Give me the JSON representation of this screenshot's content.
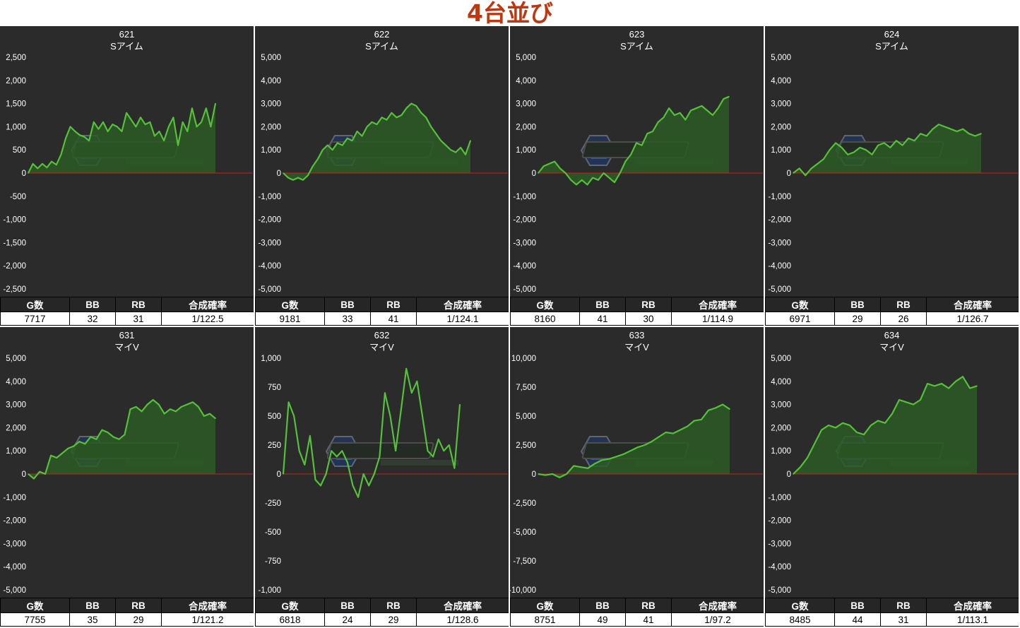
{
  "page_title": "4台並び",
  "stat_headers": [
    "G数",
    "BB",
    "RB",
    "合成確率"
  ],
  "colors": {
    "background": "#2b2b2b",
    "line": "#55c039",
    "area": "#2c5a24",
    "zero_line": "#cc1f1f",
    "title": "#c0370f"
  },
  "chart_data": [
    {
      "type": "area",
      "title": "621",
      "subtitle": "Sアイム",
      "ylim": [
        -2500,
        2500
      ],
      "yticks": [
        2500,
        2000,
        1500,
        1000,
        500,
        0,
        -500,
        -1000,
        -1500,
        -2000,
        -2500
      ],
      "yticklabels": [
        "2,500",
        "2,000",
        "1,500",
        "1,000",
        "500",
        "0",
        "-500",
        "-1,000",
        "-1,500",
        "-2,000",
        "-2,500"
      ],
      "values": [
        0,
        200,
        100,
        200,
        120,
        250,
        180,
        400,
        750,
        1000,
        900,
        820,
        780,
        700,
        1100,
        950,
        1100,
        900,
        1050,
        1000,
        900,
        1300,
        1150,
        1000,
        1200,
        1050,
        1100,
        800,
        900,
        700,
        1000,
        1200,
        600,
        1100,
        900,
        1400,
        1000,
        1100,
        1400,
        1000,
        1500
      ],
      "stats": {
        "games": "7717",
        "bb": "32",
        "rb": "31",
        "prob": "1/122.5"
      }
    },
    {
      "type": "area",
      "title": "622",
      "subtitle": "Sアイム",
      "ylim": [
        -5000,
        5000
      ],
      "yticks": [
        5000,
        4000,
        3000,
        2000,
        1000,
        0,
        -1000,
        -2000,
        -3000,
        -4000,
        -5000
      ],
      "yticklabels": [
        "5,000",
        "4,000",
        "3,000",
        "2,000",
        "1,000",
        "0",
        "-1,000",
        "-2,000",
        "-3,000",
        "-4,000",
        "-5,000"
      ],
      "values": [
        0,
        -200,
        -300,
        -200,
        -300,
        -100,
        300,
        600,
        1000,
        1200,
        1000,
        1300,
        1200,
        1500,
        1400,
        1800,
        1600,
        2000,
        2200,
        2100,
        2400,
        2300,
        2600,
        2400,
        2500,
        2800,
        3000,
        2900,
        2600,
        2400,
        2000,
        1700,
        1400,
        1200,
        1000,
        900,
        1100,
        800,
        1400
      ],
      "stats": {
        "games": "9181",
        "bb": "33",
        "rb": "41",
        "prob": "1/124.1"
      }
    },
    {
      "type": "area",
      "title": "623",
      "subtitle": "Sアイム",
      "ylim": [
        -5000,
        5000
      ],
      "yticks": [
        5000,
        4000,
        3000,
        2000,
        1000,
        0,
        -1000,
        -2000,
        -3000,
        -4000,
        -5000
      ],
      "yticklabels": [
        "5,000",
        "4,000",
        "3,000",
        "2,000",
        "1,000",
        "0",
        "-1,000",
        "-2,000",
        "-3,000",
        "-4,000",
        "-5,000"
      ],
      "values": [
        0,
        300,
        400,
        500,
        200,
        0,
        -300,
        -500,
        -300,
        -500,
        -200,
        -300,
        0,
        -200,
        -400,
        0,
        500,
        800,
        1300,
        1200,
        1700,
        1800,
        2200,
        2400,
        2800,
        2500,
        2600,
        2300,
        2700,
        2800,
        2900,
        2700,
        2500,
        2800,
        3200,
        3300
      ],
      "stats": {
        "games": "8160",
        "bb": "41",
        "rb": "30",
        "prob": "1/114.9"
      }
    },
    {
      "type": "area",
      "title": "624",
      "subtitle": "Sアイム",
      "ylim": [
        -5000,
        5000
      ],
      "yticks": [
        5000,
        4000,
        3000,
        2000,
        1000,
        0,
        -1000,
        -2000,
        -3000,
        -4000,
        -5000
      ],
      "yticklabels": [
        "5,000",
        "4,000",
        "3,000",
        "2,000",
        "1,000",
        "0",
        "-1,000",
        "-2,000",
        "-3,000",
        "-4,000",
        "-5,000"
      ],
      "values": [
        0,
        200,
        -100,
        200,
        400,
        600,
        1000,
        1300,
        1100,
        800,
        900,
        1100,
        1000,
        800,
        1200,
        1300,
        1100,
        1400,
        1200,
        1500,
        1400,
        1700,
        1600,
        1900,
        2100,
        2000,
        1900,
        1800,
        1900,
        1700,
        1600,
        1700
      ],
      "stats": {
        "games": "6971",
        "bb": "29",
        "rb": "26",
        "prob": "1/126.7"
      }
    },
    {
      "type": "area",
      "title": "631",
      "subtitle": "マイV",
      "ylim": [
        -5000,
        5000
      ],
      "yticks": [
        5000,
        4000,
        3000,
        2000,
        1000,
        0,
        -1000,
        -2000,
        -3000,
        -4000,
        -5000
      ],
      "yticklabels": [
        "5,000",
        "4,000",
        "3,000",
        "2,000",
        "1,000",
        "0",
        "-1,000",
        "-2,000",
        "-3,000",
        "-4,000",
        "-5,000"
      ],
      "values": [
        0,
        -200,
        100,
        0,
        800,
        700,
        900,
        1100,
        1200,
        1400,
        1300,
        1600,
        1500,
        1900,
        1800,
        1600,
        1500,
        1700,
        2800,
        2900,
        2700,
        3000,
        3200,
        3000,
        2600,
        2800,
        2700,
        2900,
        3000,
        3100,
        2900,
        2500,
        2600,
        2400
      ],
      "stats": {
        "games": "7755",
        "bb": "35",
        "rb": "29",
        "prob": "1/121.2"
      }
    },
    {
      "type": "line",
      "title": "632",
      "subtitle": "マイV",
      "ylim": [
        -1000,
        1000
      ],
      "yticks": [
        1000,
        750,
        500,
        250,
        0,
        -250,
        -500,
        -750,
        -1000
      ],
      "yticklabels": [
        "1,000",
        "750",
        "500",
        "250",
        "0",
        "-250",
        "-500",
        "-750",
        "-1,000"
      ],
      "values": [
        0,
        620,
        500,
        200,
        80,
        330,
        -50,
        -100,
        0,
        200,
        150,
        200,
        100,
        -100,
        -200,
        0,
        -100,
        0,
        150,
        700,
        500,
        200,
        550,
        910,
        700,
        800,
        500,
        200,
        150,
        300,
        200,
        250,
        50,
        600
      ],
      "stats": {
        "games": "6818",
        "bb": "24",
        "rb": "29",
        "prob": "1/128.6"
      }
    },
    {
      "type": "area",
      "title": "633",
      "subtitle": "マイV",
      "ylim": [
        -10000,
        10000
      ],
      "yticks": [
        10000,
        7500,
        5000,
        2500,
        0,
        -2500,
        -5000,
        -7500,
        -10000
      ],
      "yticklabels": [
        "10,000",
        "7,500",
        "5,000",
        "2,500",
        "0",
        "-2,500",
        "-5,000",
        "-7,500",
        "-10,000"
      ],
      "values": [
        0,
        -100,
        0,
        -300,
        0,
        700,
        600,
        500,
        900,
        1200,
        1300,
        1500,
        1700,
        2000,
        2300,
        2500,
        2800,
        3200,
        3600,
        3500,
        3800,
        4100,
        4600,
        4700,
        5500,
        5700,
        6000,
        5600
      ],
      "stats": {
        "games": "8751",
        "bb": "49",
        "rb": "41",
        "prob": "1/97.2"
      }
    },
    {
      "type": "area",
      "title": "634",
      "subtitle": "マイV",
      "ylim": [
        -5000,
        5000
      ],
      "yticks": [
        5000,
        4000,
        3000,
        2000,
        1000,
        0,
        -1000,
        -2000,
        -3000,
        -4000,
        -5000
      ],
      "yticklabels": [
        "5,000",
        "4,000",
        "3,000",
        "2,000",
        "1,000",
        "0",
        "-1,000",
        "-2,000",
        "-3,000",
        "-4,000",
        "-5,000"
      ],
      "values": [
        0,
        300,
        700,
        1300,
        1900,
        2100,
        2000,
        2200,
        2100,
        1800,
        1700,
        2100,
        2300,
        2200,
        2600,
        3200,
        3100,
        3000,
        3200,
        3900,
        3800,
        3900,
        3700,
        4000,
        4200,
        3700,
        3800
      ],
      "stats": {
        "games": "8485",
        "bb": "44",
        "rb": "31",
        "prob": "1/113.1"
      }
    }
  ]
}
